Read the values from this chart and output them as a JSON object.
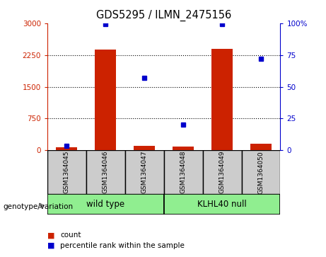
{
  "title": "GDS5295 / ILMN_2475156",
  "samples": [
    "GSM1364045",
    "GSM1364046",
    "GSM1364047",
    "GSM1364048",
    "GSM1364049",
    "GSM1364050"
  ],
  "counts": [
    75,
    2370,
    100,
    90,
    2400,
    150
  ],
  "percentiles": [
    3.5,
    99,
    57,
    20,
    99,
    72
  ],
  "group_defs": [
    {
      "label": "wild type",
      "start": 0,
      "end": 2,
      "color": "#90ee90"
    },
    {
      "label": "KLHL40 null",
      "start": 3,
      "end": 5,
      "color": "#90ee90"
    }
  ],
  "left_ylim": [
    0,
    3000
  ],
  "right_ylim": [
    0,
    100
  ],
  "left_yticks": [
    0,
    750,
    1500,
    2250,
    3000
  ],
  "right_yticks": [
    0,
    25,
    50,
    75,
    100
  ],
  "left_yticklabels": [
    "0",
    "750",
    "1500",
    "2250",
    "3000"
  ],
  "right_yticklabels": [
    "0",
    "25",
    "50",
    "75",
    "100%"
  ],
  "bar_color": "#cc2200",
  "dot_color": "#0000cc",
  "sample_box_color": "#cccccc",
  "left_tick_color": "#cc2200",
  "right_tick_color": "#0000cc",
  "legend_items": [
    {
      "label": "count",
      "color": "#cc2200"
    },
    {
      "label": "percentile rank within the sample",
      "color": "#0000cc"
    }
  ]
}
